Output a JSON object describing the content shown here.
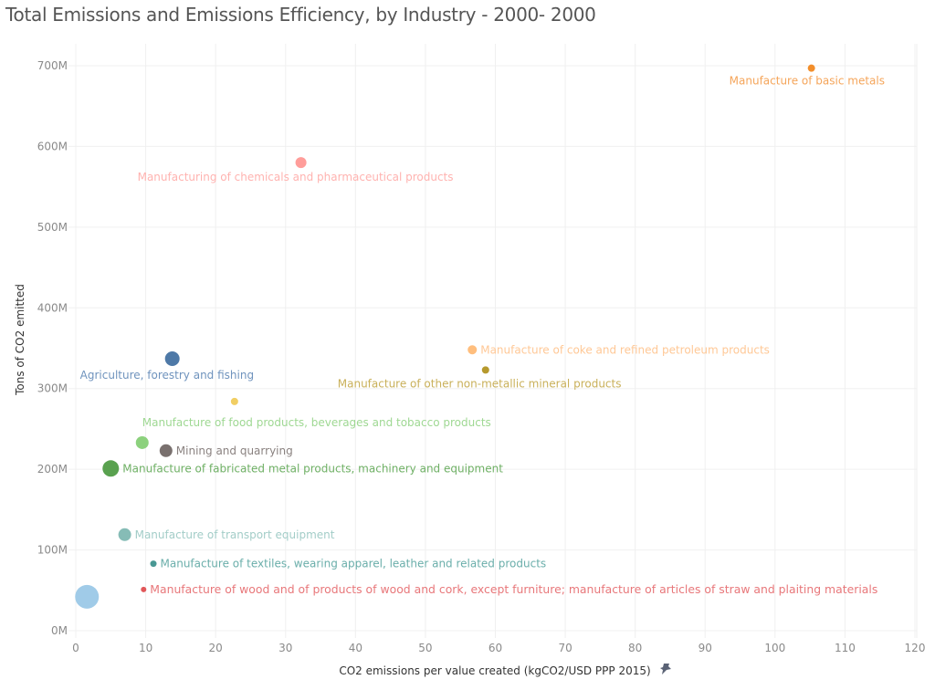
{
  "chart_data": {
    "type": "scatter",
    "title": "Total Emissions and Emissions Efficiency, by Industry - 2000- 2000",
    "xlabel": "CO2 emissions per value created (kgCO2/USD PPP 2015)",
    "ylabel": "Tons of CO2 emitted",
    "xlim": [
      0,
      120
    ],
    "ylim": [
      0,
      700
    ],
    "x_ticks": [
      "0",
      "10",
      "20",
      "30",
      "40",
      "50",
      "60",
      "70",
      "80",
      "90",
      "100",
      "110",
      "120"
    ],
    "y_ticks": [
      "0M",
      "100M",
      "200M",
      "300M",
      "400M",
      "500M",
      "600M",
      "700M"
    ],
    "grid": true,
    "x_axis_icon": "pin-icon",
    "points": [
      {
        "label": "Manufacture of basic metals",
        "x": 105.2,
        "y": 697,
        "size": 4,
        "color": "#f28e2b",
        "label_color": "#f5a55a",
        "label_pos": "below-center"
      },
      {
        "label": "Manufacturing of chemicals and pharmaceutical products",
        "x": 32.2,
        "y": 580,
        "size": 6,
        "color": "#ff9d9a",
        "label_color": "#ffb3b0",
        "label_pos": "below-center"
      },
      {
        "label": "Manufacture of coke and refined petroleum products",
        "x": 56.7,
        "y": 348,
        "size": 5,
        "color": "#ffbe7d",
        "label_color": "#ffc896",
        "label_pos": "right"
      },
      {
        "label": "Manufacture of other non-metallic mineral products",
        "x": 58.6,
        "y": 323,
        "size": 4,
        "color": "#b6992d",
        "label_color": "#c9b05a",
        "label_pos": "below-left"
      },
      {
        "label": "Agriculture, forestry and fishing",
        "x": 13.8,
        "y": 337,
        "size": 8,
        "color": "#4e79a7",
        "label_color": "#6f93bd",
        "label_pos": "below-center"
      },
      {
        "label": "",
        "x": 22.7,
        "y": 284,
        "size": 4,
        "color": "#f1ce63",
        "label_color": "#f1ce63",
        "label_pos": "none"
      },
      {
        "label": "Manufacture of food products, beverages and tobacco products",
        "x": 9.5,
        "y": 233,
        "size": 7,
        "color": "#8cd17d",
        "label_color": "#9fd893",
        "label_pos": "above-right"
      },
      {
        "label": "Mining and quarrying",
        "x": 12.9,
        "y": 223,
        "size": 7,
        "color": "#79706e",
        "label_color": "#8a8280",
        "label_pos": "right"
      },
      {
        "label": "Manufacture of fabricated metal products, machinery and equipment",
        "x": 5.0,
        "y": 201,
        "size": 9,
        "color": "#59a14f",
        "label_color": "#6fb065",
        "label_pos": "right"
      },
      {
        "label": "Manufacture of transport equipment",
        "x": 7.0,
        "y": 119,
        "size": 7,
        "color": "#86bcb6",
        "label_color": "#a3cdc8",
        "label_pos": "right"
      },
      {
        "label": "Manufacture of textiles, wearing apparel, leather and related products",
        "x": 11.1,
        "y": 83,
        "size": 3.5,
        "color": "#499894",
        "label_color": "#6aaeaa",
        "label_pos": "right"
      },
      {
        "label": "Manufacture of wood and of products of wood and cork, except furniture; manufacture of articles of straw and plaiting materials",
        "x": 9.7,
        "y": 51,
        "size": 3,
        "color": "#e15759",
        "label_color": "#e8777a",
        "label_pos": "right"
      },
      {
        "label": "",
        "x": 1.6,
        "y": 42,
        "size": 13,
        "color": "#a0cbe8",
        "label_color": "#a0cbe8",
        "label_pos": "none"
      }
    ]
  }
}
